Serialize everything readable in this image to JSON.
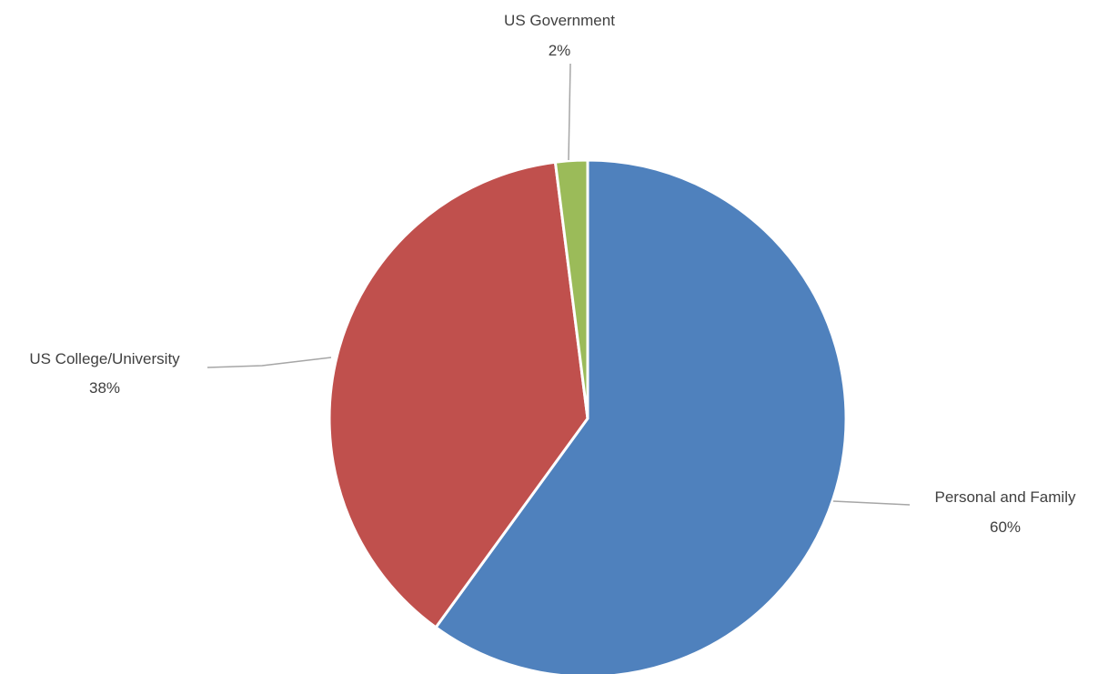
{
  "chart_data": {
    "type": "pie",
    "title": "",
    "slices": [
      {
        "label": "Personal and Family",
        "value": 60,
        "percent_label": "60%",
        "color": "#4f81bd"
      },
      {
        "label": "US College/University",
        "value": 38,
        "percent_label": "38%",
        "color": "#c0504d"
      },
      {
        "label": "US Government",
        "value": 2,
        "percent_label": "2%",
        "color": "#9bbb59"
      }
    ],
    "start_angle": "12 o'clock",
    "direction": "clockwise",
    "legend": "none",
    "data_labels": "outside-with-leader-lines"
  }
}
